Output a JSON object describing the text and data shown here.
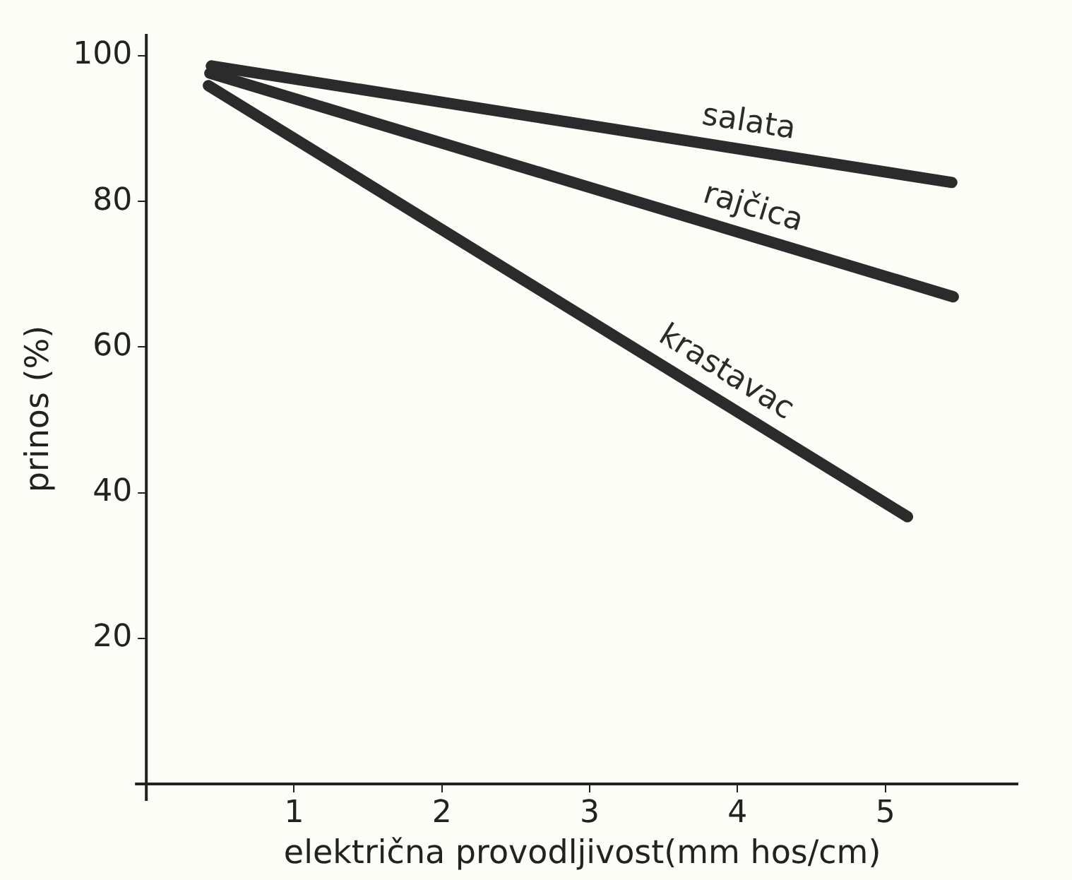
{
  "chart_data": {
    "type": "line",
    "xlabel": "električna provodljivost(mm hos/cm)",
    "ylabel": "prinos (%)",
    "xlim": [
      0,
      5.9
    ],
    "ylim": [
      0,
      103
    ],
    "xticks": [
      1,
      2,
      3,
      4,
      5
    ],
    "yticks": [
      20,
      40,
      60,
      80,
      100
    ],
    "grid": false,
    "legend": false,
    "marker": "none",
    "line_style": "solid",
    "series": [
      {
        "name": "salata",
        "color": "#2b2b2b",
        "x": [
          0.44,
          5.45
        ],
        "values": [
          98.6,
          82.6
        ]
      },
      {
        "name": "rajčica",
        "color": "#2b2b2b",
        "x": [
          0.43,
          5.46
        ],
        "values": [
          97.6,
          66.9
        ]
      },
      {
        "name": "krastavac",
        "color": "#2b2b2b",
        "x": [
          0.42,
          5.15
        ],
        "values": [
          95.9,
          36.7
        ]
      }
    ]
  }
}
